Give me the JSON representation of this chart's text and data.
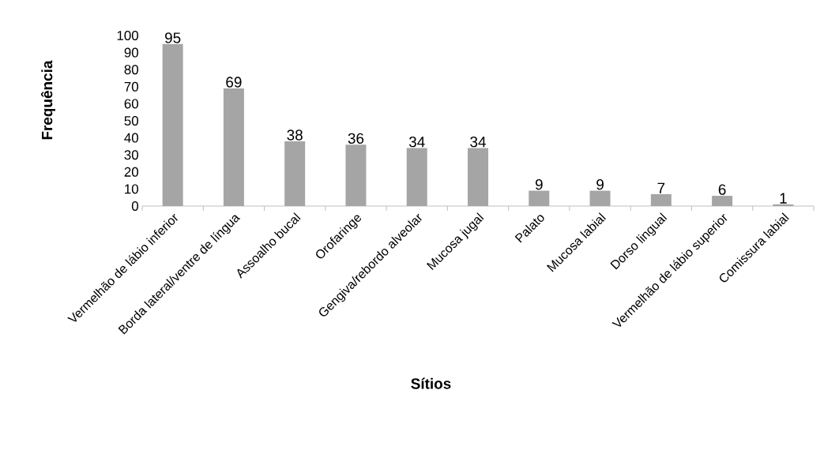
{
  "chart_data": {
    "type": "bar",
    "xlabel": "Sítios",
    "ylabel": "Frequência",
    "categories": [
      "Vermelhão de lábio inferior",
      "Borda lateral/ventre de língua",
      "Assoalho bucal",
      "Orofaringe",
      "Gengiva/rebordo alveolar",
      "Mucosa jugal",
      "Palato",
      "Mucosa labial",
      "Dorso lingual",
      "Vermelhão de lábio superior",
      "Comissura labial"
    ],
    "values": [
      95,
      69,
      38,
      36,
      34,
      34,
      9,
      9,
      7,
      6,
      1
    ],
    "color": "#a5a5a5",
    "data_labels": true,
    "ylim": [
      0,
      100
    ],
    "yticks": [
      0,
      10,
      20,
      30,
      40,
      50,
      60,
      70,
      80,
      90,
      100
    ]
  }
}
